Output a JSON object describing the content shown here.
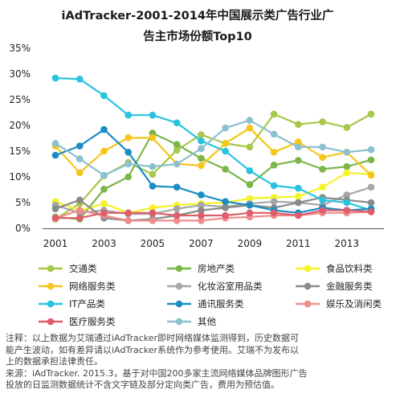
{
  "chart_data": {
    "type": "line",
    "title": [
      "iAdTracker-2001-2014年中国展示类广告行业广",
      "告主市场份额Top10"
    ],
    "x": [
      2001,
      2002,
      2003,
      2004,
      2005,
      2006,
      2007,
      2008,
      2009,
      2010,
      2011,
      2012,
      2013,
      2014
    ],
    "x_tick_labels": [
      "2001",
      "2003",
      "2005",
      "2007",
      "2009",
      "2011",
      "2013"
    ],
    "x_tick_values": [
      2001,
      2003,
      2005,
      2007,
      2009,
      2011,
      2013
    ],
    "y_tick_labels": [
      "0%",
      "5%",
      "10%",
      "15%",
      "20%",
      "25%",
      "30%",
      "35%"
    ],
    "ylim": [
      0,
      35
    ],
    "grid": false,
    "legend_position": "bottom",
    "series": [
      {
        "name": "交通类",
        "color": "#a6c94a",
        "values": [
          1.8,
          4.8,
          10.2,
          12.8,
          10.5,
          15.2,
          18.2,
          16.5,
          15.8,
          22.2,
          20.2,
          20.7,
          19.6,
          22.2
        ]
      },
      {
        "name": "房地产类",
        "color": "#7ab648",
        "values": [
          2.2,
          1.8,
          7.6,
          10.0,
          18.5,
          16.3,
          13.6,
          11.5,
          8.5,
          12.3,
          13.2,
          11.5,
          12.0,
          13.3
        ]
      },
      {
        "name": "食品饮料类",
        "color": "#f5f226",
        "values": [
          5.2,
          3.5,
          4.8,
          3.0,
          4.0,
          4.5,
          4.8,
          5.0,
          5.8,
          6.0,
          6.2,
          8.0,
          10.8,
          10.5
        ]
      },
      {
        "name": "网络服务类",
        "color": "#f6c51c",
        "values": [
          16.0,
          10.8,
          15.0,
          17.6,
          17.6,
          12.5,
          12.2,
          16.5,
          19.5,
          14.8,
          16.8,
          13.8,
          14.8,
          10.3
        ]
      },
      {
        "name": "化妆浴室用品类",
        "color": "#a6a6a6",
        "values": [
          4.5,
          3.0,
          3.5,
          2.8,
          2.8,
          3.8,
          4.5,
          4.2,
          4.8,
          5.2,
          5.0,
          4.5,
          6.5,
          8.0
        ]
      },
      {
        "name": "金融服务类",
        "color": "#8a8a8a",
        "values": [
          3.8,
          5.5,
          2.0,
          1.5,
          1.8,
          2.5,
          3.5,
          4.0,
          4.5,
          4.0,
          5.0,
          6.0,
          5.5,
          5.0
        ]
      },
      {
        "name": "IT产品类",
        "color": "#29c3df",
        "values": [
          29.2,
          29.0,
          25.8,
          22.0,
          22.0,
          20.5,
          17.0,
          15.0,
          11.2,
          8.3,
          7.8,
          5.5,
          5.0,
          3.5
        ]
      },
      {
        "name": "通讯服务类",
        "color": "#1a8ec4",
        "values": [
          14.2,
          16.0,
          19.2,
          14.8,
          8.2,
          8.0,
          6.5,
          5.2,
          4.5,
          3.5,
          3.0,
          4.0,
          3.5,
          3.8
        ]
      },
      {
        "name": "娱乐及消闲类",
        "color": "#ef8c8c",
        "values": [
          2.0,
          3.5,
          2.5,
          1.5,
          1.5,
          1.5,
          1.5,
          2.0,
          2.2,
          2.5,
          2.5,
          3.0,
          3.0,
          3.2
        ]
      },
      {
        "name": "医疗服务类",
        "color": "#de5d6b",
        "values": [
          2.0,
          2.0,
          3.0,
          3.0,
          3.0,
          2.5,
          2.5,
          2.5,
          3.0,
          3.0,
          2.5,
          3.5,
          3.5,
          3.2
        ]
      },
      {
        "name": "其他",
        "color": "#8cc0cf",
        "values": [
          16.5,
          13.5,
          10.3,
          12.5,
          12.0,
          12.5,
          15.5,
          19.5,
          21.0,
          18.3,
          15.8,
          15.8,
          14.8,
          15.3
        ]
      }
    ]
  },
  "notes": {
    "note_line1": "注释：以上数据为艾瑞通过iAdTracker即时网络媒体监测得到，历史数据可",
    "note_line2": "能产生波动，如有差异请以iAdTracker系统作为参考使用。艾瑞不为发布以",
    "note_line3": "上的数据承担法律责任。",
    "source_line1": "来源：iAdTracker. 2015.3，基于对中国200多家主流网络媒体品牌图形广告",
    "source_line2": "投放的日监测数据统计不含文字链及部分定向类广告，费用为预估值。"
  }
}
